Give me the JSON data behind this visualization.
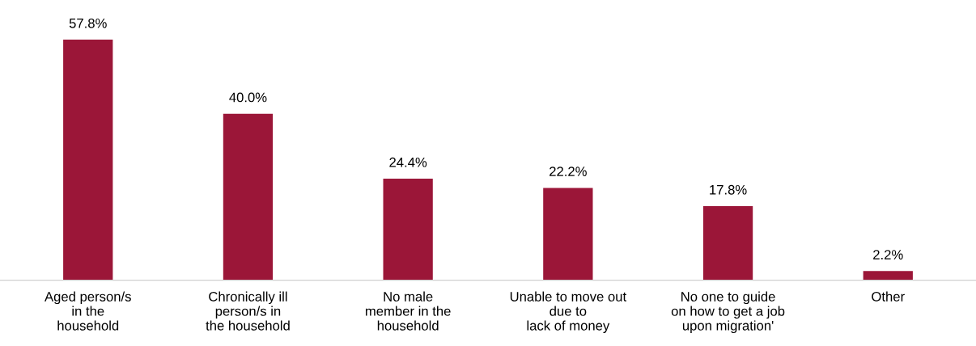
{
  "chart_data": {
    "type": "bar",
    "categories": [
      "Aged person/s\nin the\nhousehold",
      "Chronically ill\nperson/s in\nthe household",
      "No male\nmember in the\nhousehold",
      "Unable to move out\ndue to\nlack of money",
      "No one to guide\non how to get a job\nupon migration'",
      "Other"
    ],
    "values": [
      57.8,
      40.0,
      24.4,
      22.2,
      17.8,
      2.2
    ],
    "value_labels": [
      "57.8%",
      "40.0%",
      "24.4%",
      "22.2%",
      "17.8%",
      "2.2%"
    ],
    "color": "#9b1638",
    "grid": false,
    "legend": false
  }
}
